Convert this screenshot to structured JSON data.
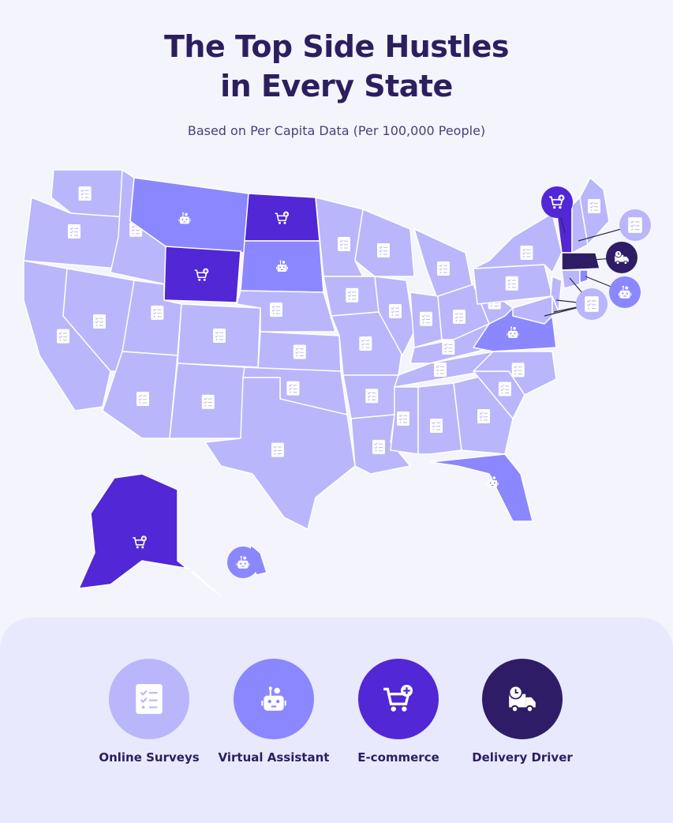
{
  "title_line1": "The Top Side Hustles",
  "title_line2": "in Every State",
  "subtitle": "Based on Per Capita Data (Per 100,000 People)",
  "categories": {
    "surveys": {
      "label": "Online Surveys",
      "color": "#b9b6fb",
      "icon": "survey-checklist-icon"
    },
    "assistant": {
      "label": "Virtual Assistant",
      "color": "#8b87fe",
      "icon": "robot-icon"
    },
    "ecommerce": {
      "label": "E-commerce",
      "color": "#5127d6",
      "icon": "shopping-cart-plus-icon"
    },
    "delivery": {
      "label": "Delivery Driver",
      "color": "#2e1d66",
      "icon": "delivery-truck-clock-icon"
    }
  },
  "states": {
    "WA": "surveys",
    "OR": "surveys",
    "CA": "surveys",
    "NV": "surveys",
    "ID": "surveys",
    "MT": "assistant",
    "WY": "ecommerce",
    "UT": "surveys",
    "CO": "surveys",
    "AZ": "surveys",
    "NM": "surveys",
    "ND": "ecommerce",
    "SD": "assistant",
    "NE": "surveys",
    "KS": "surveys",
    "OK": "surveys",
    "TX": "surveys",
    "MN": "surveys",
    "IA": "surveys",
    "MO": "surveys",
    "AR": "surveys",
    "LA": "surveys",
    "WI": "surveys",
    "IL": "surveys",
    "MI": "surveys",
    "IN": "surveys",
    "OH": "surveys",
    "KY": "surveys",
    "TN": "surveys",
    "MS": "surveys",
    "AL": "surveys",
    "GA": "surveys",
    "FL": "assistant",
    "SC": "surveys",
    "NC": "surveys",
    "VA": "assistant",
    "WV": "surveys",
    "PA": "surveys",
    "NY": "surveys",
    "VT": "ecommerce",
    "NH": "surveys",
    "ME": "surveys",
    "MA": "delivery",
    "CT": "surveys",
    "RI": "assistant",
    "NJ": "surveys",
    "MD": "surveys",
    "DE": "surveys",
    "AK": "ecommerce",
    "HI": "assistant"
  }
}
